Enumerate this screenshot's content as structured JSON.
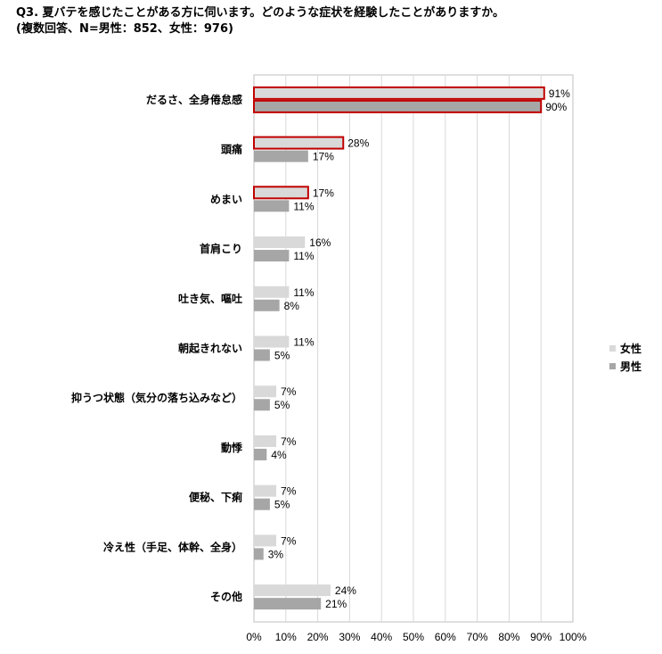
{
  "title": {
    "line1": "Q3.  夏バテを感じたことがある方に伺います。どのような症状を経験したことがありますか。",
    "line2": "(複数回答、N=男性：852、女性：976)"
  },
  "chart_data": {
    "type": "bar",
    "orientation": "horizontal",
    "categories": [
      "だるさ、全身倦怠感",
      "頭痛",
      "めまい",
      "首肩こり",
      "吐き気、嘔吐",
      "朝起きれない",
      "抑うつ状態（気分の落ち込みなど）",
      "動悸",
      "便秘、下痢",
      "冷え性（手足、体幹、全身）",
      "その他"
    ],
    "series": [
      {
        "name": "女性",
        "color": "#d9d9d9",
        "values": [
          91,
          28,
          17,
          16,
          11,
          11,
          7,
          7,
          7,
          7,
          24
        ],
        "highlight": [
          true,
          true,
          true,
          false,
          false,
          false,
          false,
          false,
          false,
          false,
          false
        ],
        "highlight_color": "#c00000"
      },
      {
        "name": "男性",
        "color": "#a6a6a6",
        "values": [
          90,
          17,
          11,
          11,
          8,
          5,
          5,
          4,
          5,
          3,
          21
        ],
        "highlight": [
          true,
          false,
          false,
          false,
          false,
          false,
          false,
          false,
          false,
          false,
          false
        ],
        "highlight_color": "#c00000"
      }
    ],
    "value_suffix": "%",
    "xlim": [
      0,
      100
    ],
    "xticks": [
      "0%",
      "10%",
      "20%",
      "30%",
      "40%",
      "50%",
      "60%",
      "70%",
      "80%",
      "90%",
      "100%"
    ],
    "grid": true,
    "legend_position": "right"
  }
}
